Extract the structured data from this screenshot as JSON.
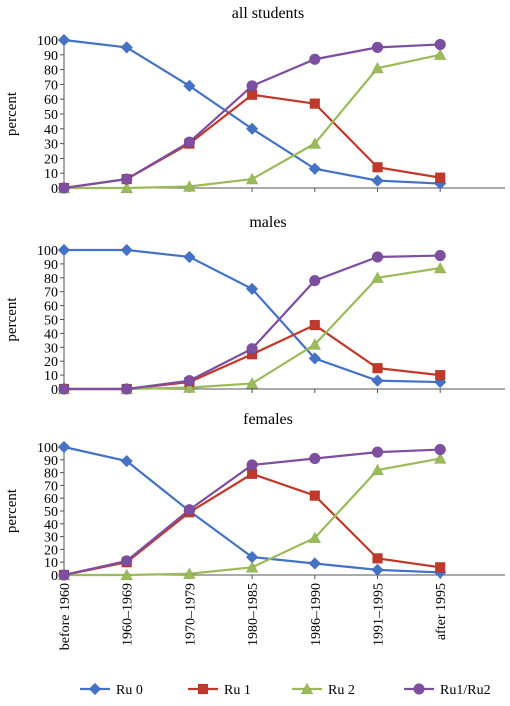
{
  "chart_data": {
    "type": "line",
    "categories": [
      "before 1960",
      "1960–1969",
      "1970–1979",
      "1980–1985",
      "1986–1990",
      "1991–1995",
      "after 1995"
    ],
    "legend_placement": "bottom",
    "grid": false,
    "series_styles": [
      {
        "name": "Ru 0",
        "color": "#4472C4",
        "marker": "diamond"
      },
      {
        "name": "Ru 1",
        "color": "#C0392B",
        "marker": "square"
      },
      {
        "name": "Ru 2",
        "color": "#9BBB59",
        "marker": "triangle"
      },
      {
        "name": "Ru1/Ru2",
        "color": "#7E4FA0",
        "marker": "circle"
      }
    ],
    "panels": [
      {
        "title": "all students",
        "ylabel": "percent",
        "ylim": [
          0,
          100
        ],
        "yticks": [
          0,
          10,
          20,
          30,
          40,
          50,
          60,
          70,
          80,
          90,
          100
        ],
        "series": [
          {
            "name": "Ru 0",
            "values": [
              100,
              95,
              69,
              40,
              13,
              5,
              3
            ]
          },
          {
            "name": "Ru 1",
            "values": [
              0,
              6,
              30,
              63,
              57,
              14,
              7
            ]
          },
          {
            "name": "Ru 2",
            "values": [
              0,
              0,
              1,
              6,
              30,
              81,
              90
            ]
          },
          {
            "name": "Ru1/Ru2",
            "values": [
              0,
              6,
              31,
              69,
              87,
              95,
              97
            ]
          }
        ]
      },
      {
        "title": "males",
        "ylabel": "percent",
        "ylim": [
          0,
          100
        ],
        "yticks": [
          0,
          10,
          20,
          30,
          40,
          50,
          60,
          70,
          80,
          90,
          100
        ],
        "series": [
          {
            "name": "Ru 0",
            "values": [
              100,
              100,
              95,
              72,
              22,
              6,
              5
            ]
          },
          {
            "name": "Ru 1",
            "values": [
              0,
              0,
              5,
              25,
              46,
              15,
              10
            ]
          },
          {
            "name": "Ru 2",
            "values": [
              0,
              0,
              1,
              4,
              32,
              80,
              87
            ]
          },
          {
            "name": "Ru1/Ru2",
            "values": [
              0,
              0,
              6,
              29,
              78,
              95,
              96
            ]
          }
        ]
      },
      {
        "title": "females",
        "ylabel": "percent",
        "ylim": [
          0,
          100
        ],
        "yticks": [
          0,
          10,
          20,
          30,
          40,
          50,
          60,
          70,
          80,
          90,
          100
        ],
        "series": [
          {
            "name": "Ru 0",
            "values": [
              100,
              89,
              50,
              14,
              9,
              4,
              2
            ]
          },
          {
            "name": "Ru 1",
            "values": [
              0,
              10,
              49,
              79,
              62,
              13,
              6
            ]
          },
          {
            "name": "Ru 2",
            "values": [
              0,
              0,
              1,
              6,
              29,
              82,
              91
            ]
          },
          {
            "name": "Ru1/Ru2",
            "values": [
              0,
              11,
              51,
              86,
              91,
              96,
              98
            ]
          }
        ]
      }
    ]
  }
}
